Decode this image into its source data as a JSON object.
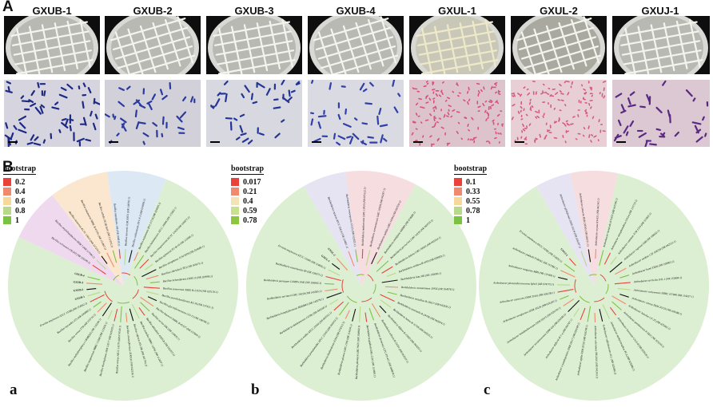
{
  "panel_a": {
    "letter": "A",
    "strains": [
      "GXUB-1",
      "GXUB-2",
      "GXUB-3",
      "GXUB-4",
      "GXUL-1",
      "GXUL-2",
      "GXUJ-1"
    ]
  },
  "panel_b": {
    "letter": "B",
    "sub_letters": [
      "a",
      "b",
      "c"
    ],
    "legends": [
      {
        "title": "bootstrap",
        "values": [
          "0.2",
          "0.4",
          "0.6",
          "0.8",
          "1"
        ],
        "colors": [
          "#e8423a",
          "#f08a6e",
          "#f5d99a",
          "#b8d98a",
          "#7cc242"
        ]
      },
      {
        "title": "bootstrap",
        "values": [
          "0.017",
          "0.21",
          "0.4",
          "0.59",
          "0.78"
        ],
        "colors": [
          "#e8423a",
          "#f08a6e",
          "#f5e3b8",
          "#c9e08f",
          "#8cc63f"
        ]
      },
      {
        "title": "bootstrap",
        "values": [
          "0.1",
          "0.33",
          "0.55",
          "0.78",
          "1"
        ],
        "colors": [
          "#e8423a",
          "#f08a6e",
          "#f5d99a",
          "#b8d98a",
          "#7cc242"
        ]
      }
    ]
  },
  "trees": [
    {
      "leaves": [
        "Bacillus velezensis CR-502 (NR 116240.1)",
        "Bacillus amyloliquefaciens DSM 7 (NR 117946.1)",
        "Bacillus siamensis KCTC 13613 (NR 117274.1)",
        "Bacillus nakamurai NRRL B-41091 (NR 151897.1)",
        "Bacillus subtilis NCIB 3610 (NR 112116.2)",
        "Bacillus tequilensis 10b (NR 104919.1)",
        "Bacillus stercoris JCM 30051 (NR 148763.1)",
        "Bacillus vallismortis DV1-F-3 (NR 024696.1)",
        "Bacillus mojavensis IFO 15718 (NR 024693.1)",
        "Bacillus halotolerans ATCC 25096 (NR 115063.1)",
        "Bacillus inaquosorum KCTC 13429 (NR 104873.1)",
        "Bacillus spizizenii TU-B-10 (NR 112686.1)",
        "Bacillus atrophaeus JCM 9070 (NR 024689.1)",
        "Bacillus cabrialesii TE3 (NR 169375.1)",
        "Bacillus licheniformis DSM 13 (NR 118996.1)",
        "Bacillus sonorensis NRRL B-23154 (NR 025130.1)",
        "Bacillus paralicheniformis KJ-16 (NR 137421.1)",
        "Bacillus glycinifermentans GO-13 (NR 148798.1)",
        "Bacillus haynesii NRRL B-41327 (NR 157609.1)",
        "Bacillus aerius 24K (NR 118439.1)",
        "Bacillus altitudinis 41KF2b (NR 042337.1)",
        "Bacillus pumilus NBRC 12092 (NR 112637.1)",
        "Bacillus safensis FO-36b (NR 041794.1)",
        "Bacillus stratosphericus 41KF2a (NR 042336.1)",
        "Bacillus cereus ATCC 14579 (NR 074540.1)",
        "Bacillus thuringiensis IAM 12077 (NR 043403.1)",
        "Bacillus megaterium NBRC 15308 (NR 112636.1)",
        "Bacillus methylotrophicus CBMB205 (NR 116240.1)",
        "Bacillus cereus FT9 (NR 115714.1)",
        "Bacillus mycoides 273 (NR 036880.1)",
        "Erwinia amylovora ATCC 15580 (NR 114692.1)",
        "GXUB-1",
        "GXUB-2",
        "GXUB-3",
        "GXUB-4"
      ]
    },
    {
      "leaves": [
        "Burkholderia cepacia ATCC 25416 (NR 114491.1)",
        "Burkholderia cenocepacia J2315 (NR 102825.1)",
        "Burkholderia multivorans LMG 13010 (NR 025122.1)",
        "Burkholderia vietnamiensis LMG 10929 (NR 042007.1)",
        "Burkholderia stabilis LMG 14294 (NR 043556.1)",
        "Burkholderia ambifaria AMMD (NR 074688.1)",
        "Burkholderia pyrrocinia LMG 14191 (NR 043555.1)",
        "Burkholderia dolosa LMG 18943 (NR 041954.1)",
        "Burkholderia anthina R-4183 (NR 028959.1)",
        "Burkholderia lata 383 (NR 102890.1)",
        "Burkholderia contaminans J2956 (NR 104978.1)",
        "Burkholderia metallica R-16017 (NR 042636.1)",
        "Burkholderia seminalis R-24196 (NR 042634.1)",
        "Burkholderia latens R-11769 (NR 042635.1)",
        "Burkholderia diffusa R-15930 (NR 042633.1)",
        "Burkholderia arboris R-24201 (NR 042637.1)",
        "Burkholderia ubonensis GTC-P3-415 (NR 040834.1)",
        "Burkholderia gladioli LMG 2216 (NR 113868.1)",
        "Burkholderia plantarii LMG 9035 (NR 104960.1)",
        "Burkholderia glumae LMG 2196 (NR 114034.1)",
        "Burkholderia thailandensis E264 (NR 074312.1)",
        "Burkholderia pseudomallei ATCC 23343 (NR 043553.1)",
        "Burkholderia mallei ATCC 23344 (NR 043552.1)",
        "Burkholderia oklahomensis C6786 (NR 043560.1)",
        "Burkholderia humptydooensis MSMB43 (NR 145578.1)",
        "Burkholderia territorii LMG 28158 (NR 145585.1)",
        "Burkholderia puraquae CAMPA 1040 (NR 156082.1)",
        "Burkholderia catarinensis 89 (NR 156075.1)",
        "Erwinia amylovora ATCC 15580 (NR 114692.1)",
        "GXUL-1",
        "GXUL-2"
      ]
    },
    {
      "leaves": [
        "Arthrobacter globiformis DSM 20124 (NR 026187.1)",
        "Arthrobacter pascens DSM 20545 (NR 026191.1)",
        "Arthrobacter oryzae KV-651 (NR 041545.1)",
        "Arthrobacter humicola KV-653 (NR 041546.1)",
        "Arthrobacter nitrophenolicus SJCon (NR 115719.1)",
        "Arthrobacter ramosus JCM 1334 (NR 113802.1)",
        "Arthrobacter cupressi D48 (NR 108432.1)",
        "Arthrobacter tumbae CIP 108739 (NR 042531.1)",
        "Arthrobacter humi ZH26 (NR 108963.1)",
        "Arthrobacter terricola JH1-1 (NR 152684.1)",
        "Arthrobacter woluwensis NBRC 107840 (NR 114257.1)",
        "Arthrobacter citreus DSM 20133 (NR 026188.1)",
        "Arthrobacter luteolus CF-25 (NR 025402.1)",
        "Arthrobacter gandavensis R 5812 (NR 025554.1)",
        "Arthrobacter koreensis CA15-8 (NR 025618.1)",
        "Arthrobacter methylotrophus TGA (NR 029286.1)",
        "Arthrobacter sulfonivorans ALL (NR 025086.1)",
        "Arthrobacter scleromae YH-2001 (NR 041563.1)",
        "Arthrobacter agilis DSM 20550 (NR 026198.1)",
        "Arthrobacter crystallopoietes DSM 20117 (NR 026189.1)",
        "Arthrobacter defluvii 4C1-a (NR 043747.1)",
        "Arthrobacter nicotinovorans DSM 420 (NR 026190.1)",
        "Arthrobacter histidinolovorans DSM 20115 (NR 026193.1)",
        "Arthrobacter ureafaciens DSM 20126 (NR 026187.1)",
        "Arthrobacter aurescens DSM 20116 (NR 026238.1)",
        "Arthrobacter phenanthrenivorans Sphe3 (NR 074770.1)",
        "Arthrobacter sanguinis MB9 (NR 137400.1)",
        "Arthrobacter pokkalii P3B162 (NR 151983.1)",
        "Erwinia amylovora ATCC 15580 (NR 114692.1)",
        "GXUJ-1"
      ]
    }
  ]
}
